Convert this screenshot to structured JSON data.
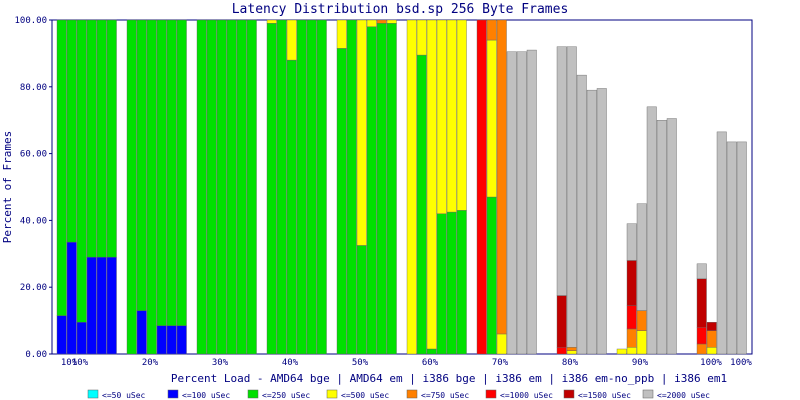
{
  "chart_data": {
    "type": "bar",
    "stacked": true,
    "title": "Latency Distribution bsd.sp 256 Byte Frames",
    "xlabel": "Percent Load - AMD64 bge | AMD64 em | i386 bge | i386 em | i386 em-no_ppb | i386 em1",
    "ylabel": "Percent of Frames",
    "ylim": [
      0,
      100
    ],
    "yticks": [
      "0.00",
      "20.00",
      "40.00",
      "60.00",
      "80.00",
      "100.00"
    ],
    "x_tick_labels": [
      "10%",
      "10%",
      "20%",
      "30%",
      "40%",
      "50%",
      "60%",
      "70%",
      "80%",
      "90%",
      "100%",
      "100%"
    ],
    "groups": [
      "10%",
      "20%",
      "30%",
      "40%",
      "50%",
      "60%",
      "70%",
      "80%",
      "90%",
      "100%"
    ],
    "series_per_group": [
      "AMD64 bge",
      "AMD64 em",
      "i386 bge",
      "i386 em",
      "i386 em-no_ppb",
      "i386 em1"
    ],
    "bins": [
      {
        "name": "<=50 uSec",
        "color": "#00ffff"
      },
      {
        "name": "<=100 uSec",
        "color": "#0000ff"
      },
      {
        "name": "<=250 uSec",
        "color": "#00e000"
      },
      {
        "name": "<=500 uSec",
        "color": "#ffff00"
      },
      {
        "name": "<=750 uSec",
        "color": "#ff8000"
      },
      {
        "name": "<=1000 uSec",
        "color": "#ff0000"
      },
      {
        "name": "<=1500 uSec",
        "color": "#c00000"
      },
      {
        "name": "<=2000 uSec",
        "color": "#c0c0c0"
      }
    ],
    "bars": [
      [
        [
          0,
          11.5,
          88.5,
          0,
          0,
          0,
          0,
          0
        ],
        [
          0,
          33.5,
          66.5,
          0,
          0,
          0,
          0,
          0
        ],
        [
          0,
          9.5,
          90.5,
          0,
          0,
          0,
          0,
          0
        ],
        [
          0,
          29,
          71,
          0,
          0,
          0,
          0,
          0
        ],
        [
          0,
          29,
          71,
          0,
          0,
          0,
          0,
          0
        ],
        [
          0,
          29,
          71,
          0,
          0,
          0,
          0,
          0
        ]
      ],
      [
        [
          0,
          0,
          100,
          0,
          0,
          0,
          0,
          0
        ],
        [
          0,
          13,
          87,
          0,
          0,
          0,
          0,
          0
        ],
        [
          0,
          0,
          100,
          0,
          0,
          0,
          0,
          0
        ],
        [
          0,
          8.5,
          91.5,
          0,
          0,
          0,
          0,
          0
        ],
        [
          0,
          8.5,
          91.5,
          0,
          0,
          0,
          0,
          0
        ],
        [
          0,
          8.5,
          91.5,
          0,
          0,
          0,
          0,
          0
        ]
      ],
      [
        [
          0,
          0,
          100,
          0,
          0,
          0,
          0,
          0
        ],
        [
          0,
          0,
          100,
          0,
          0,
          0,
          0,
          0
        ],
        [
          0,
          0,
          100,
          0,
          0,
          0,
          0,
          0
        ],
        [
          0,
          0,
          100,
          0,
          0,
          0,
          0,
          0
        ],
        [
          0,
          0,
          100,
          0,
          0,
          0,
          0,
          0
        ],
        [
          0,
          0,
          100,
          0,
          0,
          0,
          0,
          0
        ]
      ],
      [
        [
          0,
          0,
          99,
          1,
          0,
          0,
          0,
          0
        ],
        [
          0,
          0,
          100,
          0,
          0,
          0,
          0,
          0
        ],
        [
          0,
          0,
          88,
          12,
          0,
          0,
          0,
          0
        ],
        [
          0,
          0,
          100,
          0,
          0,
          0,
          0,
          0
        ],
        [
          0,
          0,
          100,
          0,
          0,
          0,
          0,
          0
        ],
        [
          0,
          0,
          100,
          0,
          0,
          0,
          0,
          0
        ]
      ],
      [
        [
          0,
          0,
          91.5,
          8.5,
          0,
          0,
          0,
          0
        ],
        [
          0,
          0,
          100,
          0,
          0,
          0,
          0,
          0
        ],
        [
          0,
          0,
          32.5,
          67.5,
          0,
          0,
          0,
          0
        ],
        [
          0,
          0,
          98,
          2,
          0,
          0,
          0,
          0
        ],
        [
          0,
          0,
          99,
          0,
          1,
          0,
          0,
          0
        ],
        [
          0,
          0,
          99,
          1,
          0,
          0,
          0,
          0
        ]
      ],
      [
        [
          0,
          0,
          0,
          100,
          0,
          0,
          0,
          0
        ],
        [
          0,
          0,
          89.5,
          10.5,
          0,
          0,
          0,
          0
        ],
        [
          0,
          0,
          1.5,
          98.5,
          0,
          0,
          0,
          0
        ],
        [
          0,
          0,
          42,
          58,
          0,
          0,
          0,
          0
        ],
        [
          0,
          0,
          42.5,
          57.5,
          0,
          0,
          0,
          0
        ],
        [
          0,
          0,
          43,
          57,
          0,
          0,
          0,
          0
        ]
      ],
      [
        [
          0,
          0,
          0,
          0,
          0,
          100,
          0,
          0
        ],
        [
          0,
          0,
          47,
          47,
          6,
          0,
          0,
          0
        ],
        [
          0,
          0,
          0,
          6,
          94,
          0,
          0,
          0
        ],
        [
          0,
          0,
          0,
          0,
          0,
          0,
          0,
          90.5
        ],
        [
          0,
          0,
          0,
          0,
          0,
          0,
          0,
          90.5
        ],
        [
          0,
          0,
          0,
          0,
          0,
          0,
          0,
          91
        ]
      ],
      [
        [
          0,
          0,
          0,
          0,
          0,
          0,
          0,
          0
        ],
        [
          0,
          0,
          0,
          0,
          0,
          2,
          15.5,
          74.5
        ],
        [
          0,
          0,
          0,
          1,
          1,
          0,
          0,
          90
        ],
        [
          0,
          0,
          0,
          0,
          0,
          0,
          0,
          83.5
        ],
        [
          0,
          0,
          0,
          0,
          0,
          0,
          0,
          79
        ],
        [
          0,
          0,
          0,
          0,
          0,
          0,
          0,
          79.5
        ]
      ],
      [
        [
          0,
          0,
          0,
          1.5,
          0,
          0,
          0,
          0
        ],
        [
          0,
          0,
          0,
          2,
          5.5,
          7,
          13.5,
          11
        ],
        [
          0,
          0,
          0,
          7,
          6,
          0,
          0,
          32
        ],
        [
          0,
          0,
          0,
          0,
          0,
          0,
          0,
          74
        ],
        [
          0,
          0,
          0,
          0,
          0,
          0,
          0,
          70
        ],
        [
          0,
          0,
          0,
          0,
          0,
          0,
          0,
          70.5
        ]
      ],
      [
        [
          0,
          0,
          0,
          0,
          0,
          0,
          0,
          0
        ],
        [
          0,
          0,
          0,
          0,
          3,
          5,
          14.5,
          4.5
        ],
        [
          0,
          0,
          0,
          2,
          5,
          0,
          2.5,
          0
        ],
        [
          0,
          0,
          0,
          0,
          0,
          0,
          0,
          66.5
        ],
        [
          0,
          0,
          0,
          0,
          0,
          0,
          0,
          63.5
        ],
        [
          0,
          0,
          0,
          0,
          0,
          0,
          0,
          63.5
        ]
      ]
    ],
    "legend_position": "bottom",
    "grid": false
  }
}
